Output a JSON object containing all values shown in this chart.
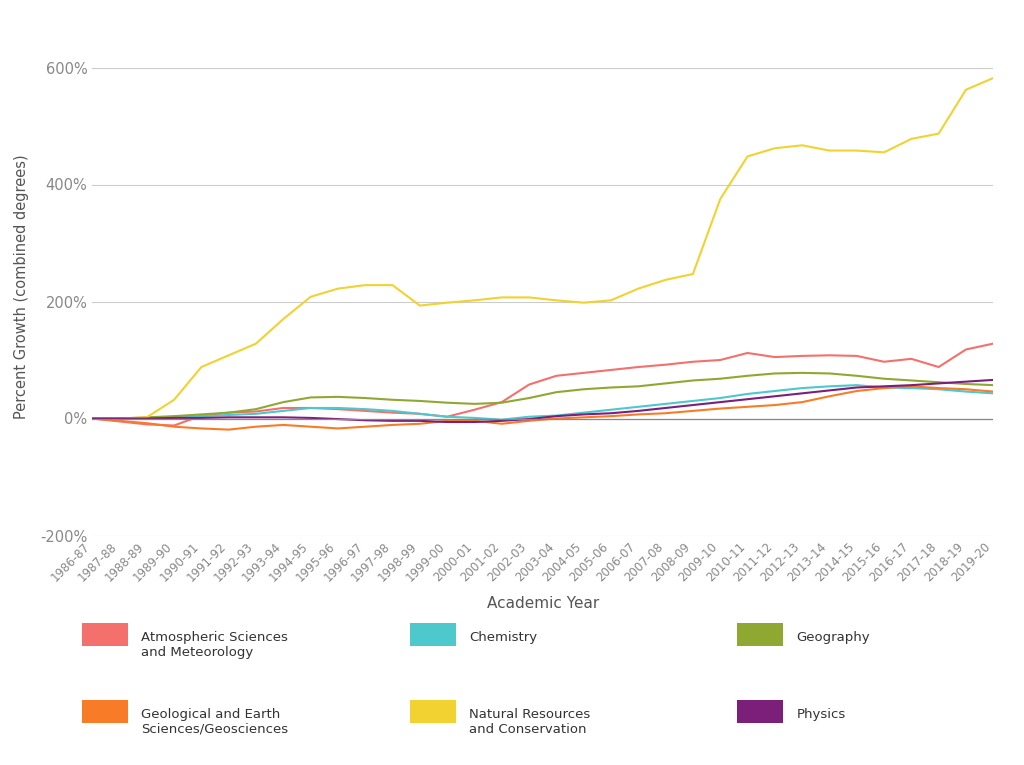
{
  "xlabel": "Academic Year",
  "ylabel": "Percent Growth (combined degrees)",
  "years": [
    "1986-87",
    "1987-88",
    "1988-89",
    "1989-90",
    "1990-91",
    "1991-92",
    "1992-93",
    "1993-94",
    "1994-95",
    "1995-96",
    "1996-97",
    "1997-98",
    "1998-99",
    "1999-00",
    "2000-01",
    "2001-02",
    "2002-03",
    "2003-04",
    "2004-05",
    "2005-06",
    "2006-07",
    "2007-08",
    "2008-09",
    "2009-10",
    "2010-11",
    "2011-12",
    "2012-13",
    "2013-14",
    "2014-15",
    "2015-16",
    "2016-17",
    "2017-18",
    "2018-19",
    "2019-20"
  ],
  "series": [
    {
      "label": "Atmospheric Sciences\nand Meteorology",
      "color": "#F4706C",
      "data": [
        0,
        -5,
        -10,
        -12,
        5,
        10,
        12,
        18,
        18,
        16,
        13,
        10,
        8,
        3,
        15,
        28,
        58,
        73,
        78,
        83,
        88,
        92,
        97,
        100,
        112,
        105,
        107,
        108,
        107,
        97,
        102,
        88,
        118,
        128
      ]
    },
    {
      "label": "Chemistry",
      "color": "#4DC8CC",
      "data": [
        0,
        0,
        1,
        3,
        4,
        6,
        8,
        13,
        18,
        18,
        16,
        13,
        8,
        3,
        1,
        -2,
        3,
        5,
        10,
        15,
        20,
        25,
        30,
        35,
        42,
        47,
        52,
        55,
        57,
        53,
        52,
        50,
        46,
        43
      ]
    },
    {
      "label": "Geography",
      "color": "#8FA832",
      "data": [
        0,
        0,
        2,
        4,
        7,
        10,
        16,
        28,
        36,
        37,
        35,
        32,
        30,
        27,
        25,
        27,
        35,
        45,
        50,
        53,
        55,
        60,
        65,
        68,
        73,
        77,
        78,
        77,
        73,
        68,
        65,
        62,
        59,
        57
      ]
    },
    {
      "label": "Geological and Earth\nSciences/Geosciences",
      "color": "#F87C28",
      "data": [
        0,
        -4,
        -8,
        -14,
        -17,
        -19,
        -14,
        -11,
        -14,
        -17,
        -14,
        -11,
        -9,
        -4,
        -4,
        -9,
        -4,
        0,
        2,
        4,
        7,
        9,
        13,
        17,
        20,
        23,
        28,
        38,
        47,
        52,
        55,
        52,
        50,
        46
      ]
    },
    {
      "label": "Natural Resources\nand Conservation",
      "color": "#F2D230",
      "data": [
        0,
        0,
        2,
        32,
        88,
        108,
        128,
        170,
        208,
        222,
        228,
        228,
        193,
        198,
        202,
        207,
        207,
        202,
        198,
        202,
        222,
        237,
        247,
        375,
        448,
        462,
        467,
        458,
        458,
        455,
        478,
        487,
        562,
        582
      ]
    },
    {
      "label": "Physics",
      "color": "#7B1F7A",
      "data": [
        0,
        0,
        0,
        1,
        1,
        2,
        2,
        2,
        1,
        -1,
        -3,
        -4,
        -4,
        -6,
        -6,
        -4,
        -1,
        4,
        7,
        9,
        13,
        18,
        23,
        28,
        33,
        38,
        43,
        48,
        53,
        55,
        57,
        60,
        63,
        66
      ]
    }
  ],
  "ylim": [
    -200,
    650
  ],
  "yticks": [
    -200,
    0,
    200,
    400,
    600
  ],
  "ytick_labels": [
    "-200%",
    "0%",
    "200%",
    "400%",
    "600%"
  ],
  "background_color": "#FFFFFF",
  "grid_color": "#CCCCCC",
  "tick_color": "#888888",
  "label_color": "#555555"
}
